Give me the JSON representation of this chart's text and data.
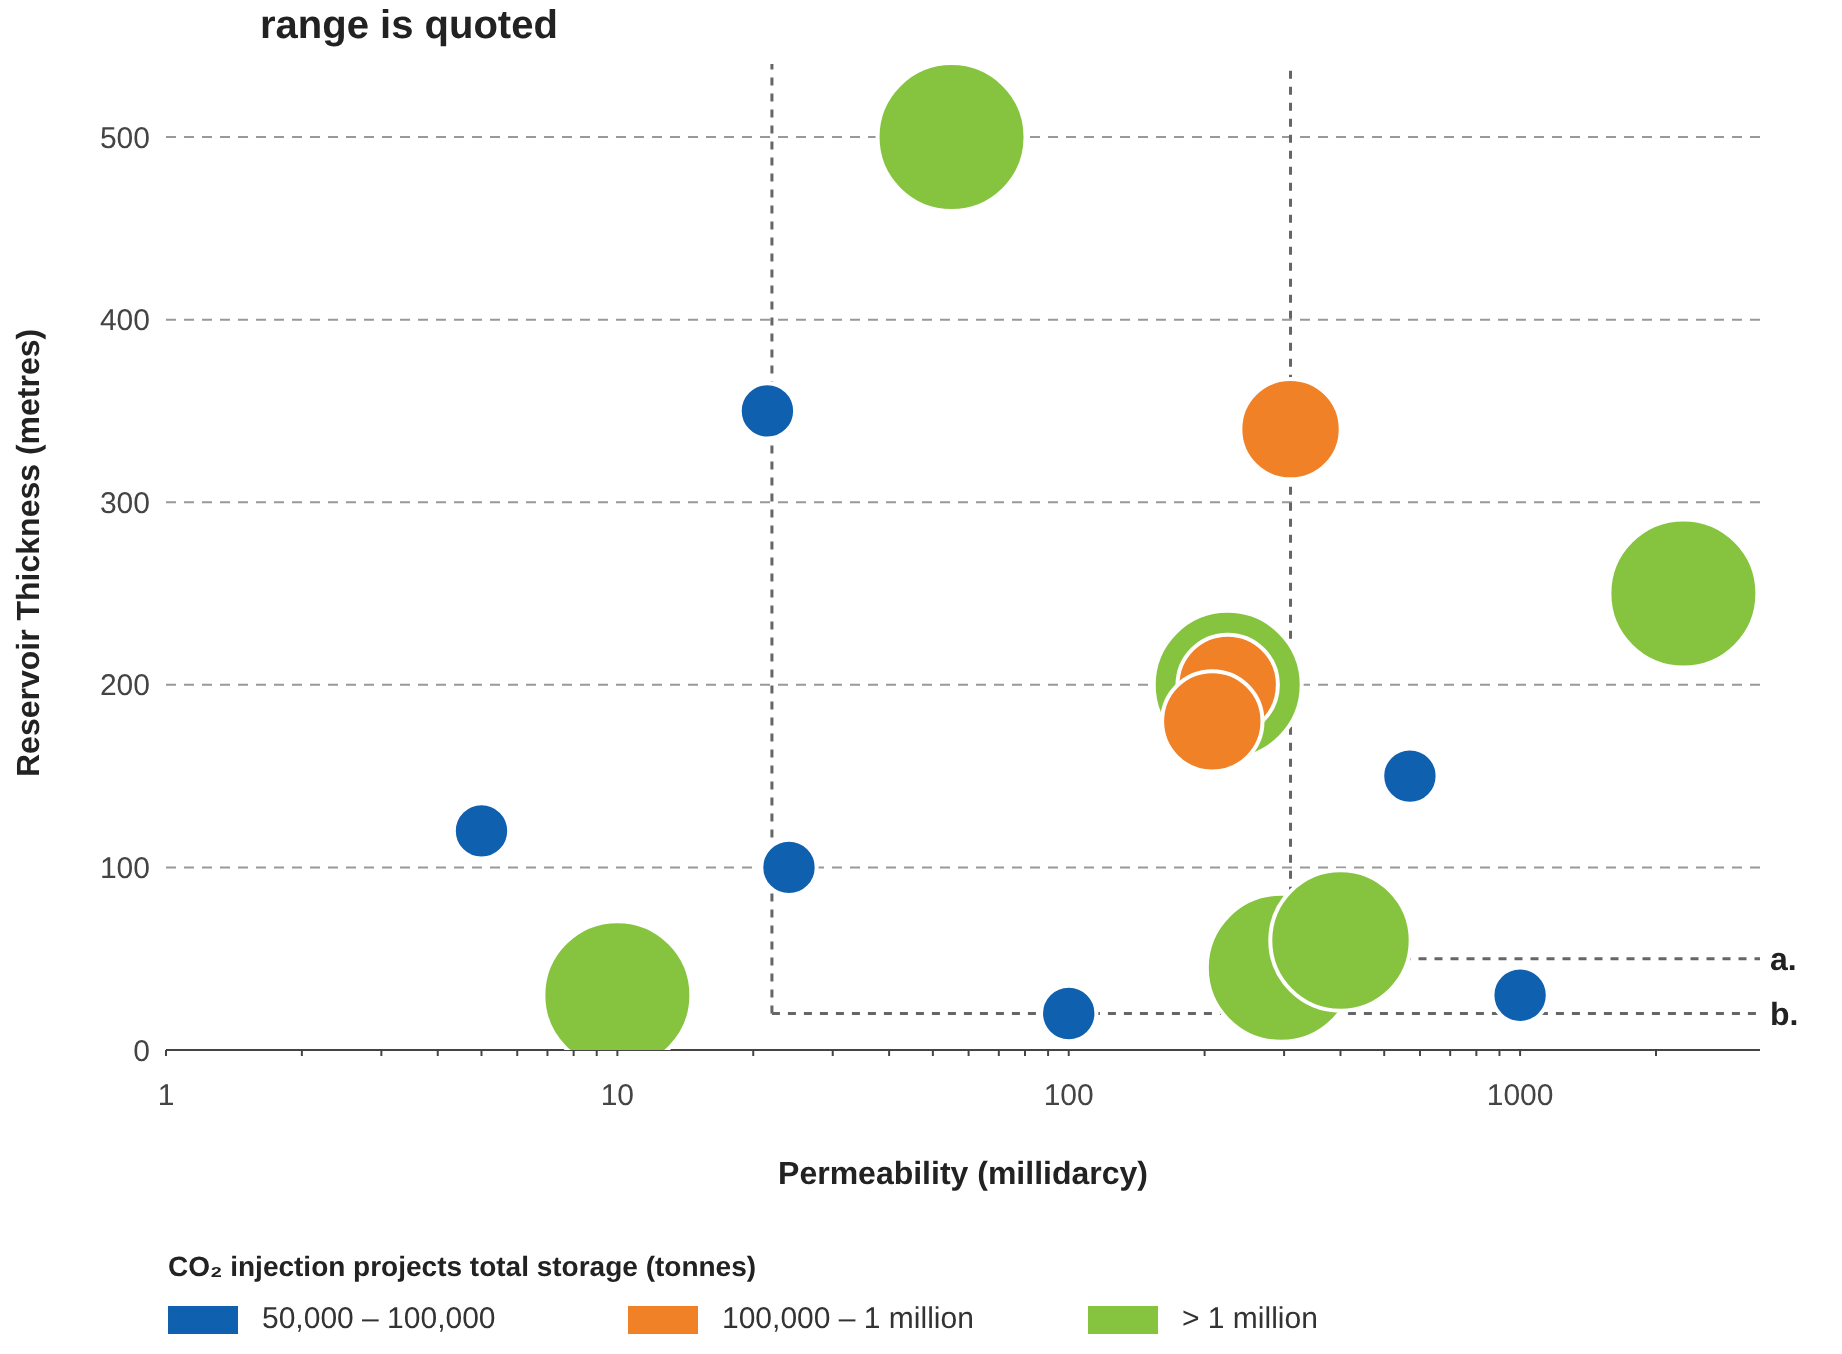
{
  "chart_data": {
    "type": "bubble",
    "title": "range is quoted",
    "xlabel": "Permeability (millidarcy)",
    "ylabel": "Reservoir Thickness (metres)",
    "legend_title": "CO₂ injection projects total storage (tonnes)",
    "log": "x",
    "grid": "y",
    "legend": "bottom",
    "marker": "circle",
    "xlim": [
      1,
      3400
    ],
    "xticks": [
      1,
      {
        "value": 2,
        "label": null
      },
      {
        "value": 3,
        "label": null
      },
      {
        "value": 4,
        "label": null
      },
      {
        "value": 5,
        "label": null
      },
      {
        "value": 6,
        "label": null
      },
      {
        "value": 7,
        "label": null
      },
      {
        "value": 8,
        "label": null
      },
      {
        "value": 9,
        "label": null
      },
      10,
      {
        "value": 20,
        "label": null
      },
      {
        "value": 30,
        "label": null
      },
      {
        "value": 40,
        "label": null
      },
      {
        "value": 50,
        "label": null
      },
      {
        "value": 60,
        "label": null
      },
      {
        "value": 70,
        "label": null
      },
      {
        "value": 80,
        "label": null
      },
      {
        "value": 90,
        "label": null
      },
      100,
      {
        "value": 200,
        "label": null
      },
      {
        "value": 300,
        "label": null
      },
      {
        "value": 400,
        "label": null
      },
      {
        "value": 500,
        "label": null
      },
      {
        "value": 600,
        "label": null
      },
      {
        "value": 700,
        "label": null
      },
      {
        "value": 800,
        "label": null
      },
      {
        "value": 900,
        "label": null
      },
      1000,
      {
        "value": 2000,
        "label": null
      }
    ],
    "ylim": [
      0,
      540
    ],
    "yticks": [
      0,
      100,
      200,
      300,
      400,
      500
    ],
    "series": [
      {
        "name": "50,000 – 100,000",
        "color": "#1060b0",
        "x": [
          5,
          21.5,
          24,
          100,
          570,
          1000
        ],
        "values": [
          120,
          350,
          100,
          20,
          150,
          30
        ],
        "sizes": [
          0.14,
          0.14,
          0.14,
          0.14,
          0.14,
          0.14
        ]
      },
      {
        "name": "100,000 – 1 million",
        "color": "#f08127",
        "x": [
          310,
          225,
          208
        ],
        "values": [
          340,
          200,
          180
        ],
        "sizes": [
          0.46,
          0.46,
          0.46
        ]
      },
      {
        "name": "> 1 million",
        "color": "#86c440",
        "x": [
          55,
          10,
          225,
          295,
          400,
          2300
        ],
        "values": [
          500,
          30,
          200,
          45,
          60,
          250
        ],
        "sizes": [
          1,
          1,
          1,
          1,
          0.9,
          1
        ]
      }
    ],
    "ref_lines": [
      {
        "axis": "x",
        "value": 22,
        "label": null,
        "color": "#666666",
        "line_style": "dashed"
      },
      {
        "axis": "x",
        "value": 310,
        "label": null,
        "color": "#666666",
        "line_style": "dashed"
      },
      {
        "axis": "y",
        "value": 20,
        "label": "b.",
        "color": "#666666",
        "line_style": "dashed"
      },
      {
        "axis": "y",
        "value": 50,
        "label": "a.",
        "color": "#666666",
        "line_style": "dashed"
      }
    ]
  }
}
